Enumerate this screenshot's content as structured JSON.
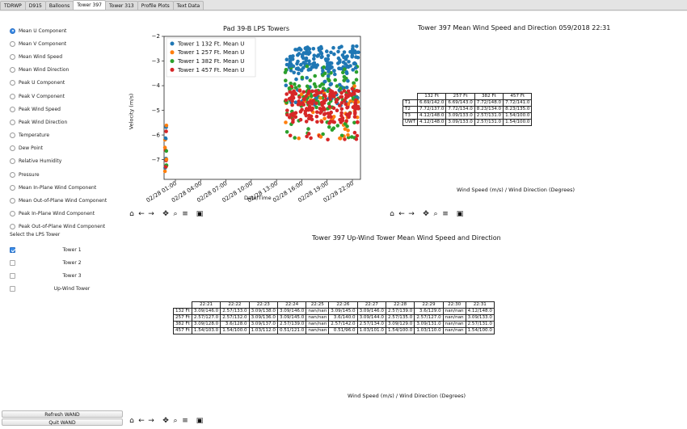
{
  "tabs": [
    "TDRWP",
    "D915",
    "Balloons",
    "Tower 397",
    "Tower 313",
    "Profile Plots",
    "Text Data"
  ],
  "active_tab": "Tower 397",
  "radio_options": [
    "Mean U Component",
    "Mean V Component",
    "Mean Wind Speed",
    "Mean Wind Direction",
    "Peak U Component",
    "Peak V Component",
    "Peak Wind Speed",
    "Peak Wind Direction",
    "Temperature",
    "Dew Point",
    "Relative Humidity",
    "Pressure",
    "Mean In-Plane Wind Component",
    "Mean Out-of-Plane Wind Component",
    "Peak In-Plane Wind Component",
    "Peak Out-of-Plane Wind Component"
  ],
  "radio_selected": "Mean U Component",
  "tower_select_label": "Select the LPS Tower",
  "towers": [
    {
      "label": "Tower 1",
      "checked": true
    },
    {
      "label": "Tower 2",
      "checked": false
    },
    {
      "label": "Tower 3",
      "checked": false
    },
    {
      "label": "Up-Wind Tower",
      "checked": false
    }
  ],
  "buttons": {
    "refresh": "Refresh WAND",
    "quit": "Quit WAND"
  },
  "toolbar_icons": [
    "home-icon",
    "back-arrow-icon",
    "forward-arrow-icon",
    "pan-icon",
    "zoom-icon",
    "configure-subplots-icon",
    "save-icon"
  ],
  "chart_data": {
    "type": "scatter",
    "title": "Pad 39-B LPS Towers",
    "xlabel": "Date/Time",
    "ylabel": "Velocity (m/s)",
    "ylim": [
      -7.8,
      -2
    ],
    "yticks": [
      "−2",
      "−3",
      "−4",
      "−5",
      "−6",
      "−7"
    ],
    "xticks": [
      "02/28 01:00",
      "02/28 04:00",
      "02/28 07:00",
      "02/28 10:00",
      "02/28 13:00",
      "02/28 16:00",
      "02/28 19:00",
      "02/28 22:00"
    ],
    "legend_position": "top-left",
    "series": [
      {
        "name": "Tower 1 132 Ft.  Mean U",
        "color": "#1f77b4"
      },
      {
        "name": "Tower 1 257 Ft.  Mean U",
        "color": "#ff7f0e"
      },
      {
        "name": "Tower 1 382 Ft.  Mean U",
        "color": "#2ca02c"
      },
      {
        "name": "Tower 1 457 Ft.  Mean U",
        "color": "#d62728"
      }
    ]
  },
  "table1": {
    "title": "Tower 397 Mean Wind Speed and Direction 059/2018 22:31",
    "columns": [
      "132 Ft",
      "257 Ft",
      "382 Ft",
      "457 Ft"
    ],
    "rows": [
      {
        "label": "T1",
        "values": [
          "6.69/142.0",
          "6.69/143.0",
          "7.72/148.0",
          "7.72/141.0"
        ]
      },
      {
        "label": "T2",
        "values": [
          "7.72/137.0",
          "7.72/134.0",
          "8.23/134.0",
          "8.23/135.0"
        ]
      },
      {
        "label": "T3",
        "values": [
          "4.12/148.0",
          "3.09/133.0",
          "2.57/131.0",
          "1.54/100.0"
        ]
      },
      {
        "label": "UWT",
        "values": [
          "4.12/148.0",
          "3.09/133.0",
          "2.57/131.0",
          "1.54/100.0"
        ]
      }
    ],
    "caption": "Wind Speed (m/s) / Wind Direction (Degrees)"
  },
  "table2": {
    "title": "Tower 397 Up-Wind Tower Mean Wind Speed and Direction",
    "columns": [
      "22:21",
      "22:22",
      "22:23",
      "22:24",
      "22:25",
      "22:26",
      "22:27",
      "22:28",
      "22:29",
      "22:30",
      "22:31"
    ],
    "rows": [
      {
        "label": "132 Ft",
        "values": [
          "3.09/146.0",
          "2.57/133.0",
          "3.09/138.0",
          "3.09/146.0",
          "nan/nan",
          "3.09/145.0",
          "3.09/146.0",
          "2.57/139.0",
          "3.6/129.0",
          "nan/nan",
          "4.12/148.0"
        ]
      },
      {
        "label": "257 Ft",
        "values": [
          "2.57/127.0",
          "2.57/132.0",
          "3.09/136.0",
          "3.09/145.0",
          "nan/nan",
          "3.6/140.0",
          "3.09/144.0",
          "2.57/135.0",
          "2.57/127.0",
          "nan/nan",
          "3.09/133.0"
        ]
      },
      {
        "label": "382 Ft",
        "values": [
          "3.09/128.0",
          "3.6/128.0",
          "3.09/137.0",
          "2.57/139.0",
          "nan/nan",
          "2.57/142.0",
          "2.57/134.0",
          "3.09/129.0",
          "3.09/131.0",
          "nan/nan",
          "2.57/131.0"
        ]
      },
      {
        "label": "457 Ft",
        "values": [
          "1.54/103.0",
          "1.54/100.0",
          "1.03/112.0",
          "0.51/121.0",
          "nan/nan",
          "0.51/96.0",
          "1.03/101.0",
          "1.54/100.0",
          "1.03/110.0",
          "nan/nan",
          "1.54/100.0"
        ]
      }
    ],
    "caption": "Wind Speed (m/s) / Wind Direction (Degrees)"
  }
}
